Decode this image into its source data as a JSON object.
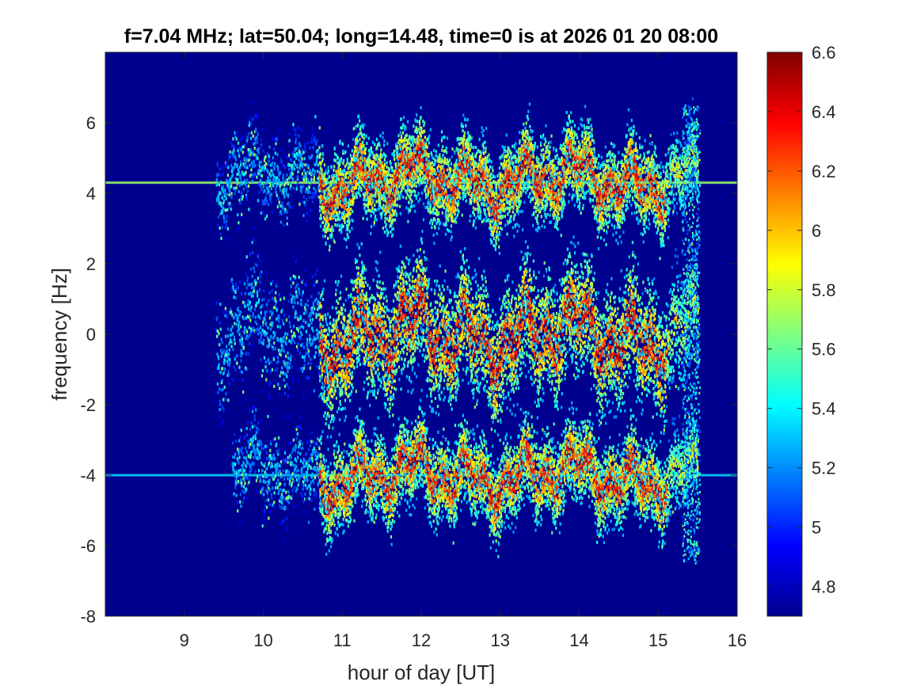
{
  "chart_data": {
    "type": "heatmap",
    "title": "f=7.04 MHz;  lat=50.04; long=14.48, time=0 is at 2026 01 20 08:00",
    "xlabel": "hour of day [UT]",
    "ylabel": "frequency [Hz]",
    "xlim": [
      8,
      16
    ],
    "ylim": [
      -8,
      8
    ],
    "xticks": [
      9,
      10,
      11,
      12,
      13,
      14,
      15,
      16
    ],
    "xtick_labels": [
      "9",
      "10",
      "11",
      "12",
      "13",
      "14",
      "15",
      "16"
    ],
    "yticks": [
      -8,
      -6,
      -4,
      -2,
      0,
      2,
      4,
      6
    ],
    "ytick_labels": [
      "-8",
      "-6",
      "-4",
      "-2",
      "0",
      "2",
      "4",
      "6"
    ],
    "colormap": "jet",
    "clim": [
      4.7,
      6.6
    ],
    "colorbar_ticks": [
      4.8,
      5,
      5.2,
      5.4,
      5.6,
      5.8,
      6,
      6.2,
      6.4,
      6.6
    ],
    "colorbar_tick_labels": [
      "4.8",
      "5",
      "5.2",
      "5.4",
      "5.6",
      "5.8",
      "6",
      "6.2",
      "6.4",
      "6.6"
    ],
    "background_value": 4.7,
    "steady_carriers": [
      {
        "frequency_hz": 4.3,
        "x_range": [
          8.0,
          16.0
        ],
        "value": 5.7
      },
      {
        "frequency_hz": -4.0,
        "x_range": [
          8.0,
          16.0
        ],
        "value": 5.35
      }
    ],
    "doppler_traces": [
      {
        "band": "upper",
        "x_range": [
          9.4,
          15.5
        ],
        "center_hz": 4.4,
        "value_peak": 6.6
      },
      {
        "band": "main",
        "x_range": [
          9.4,
          15.5
        ],
        "center_hz": 0.0,
        "value_peak": 6.6
      },
      {
        "band": "lower",
        "x_range": [
          9.6,
          15.5
        ],
        "center_hz": -4.0,
        "value_peak": 6.6
      }
    ],
    "grid": false,
    "legend": false
  }
}
